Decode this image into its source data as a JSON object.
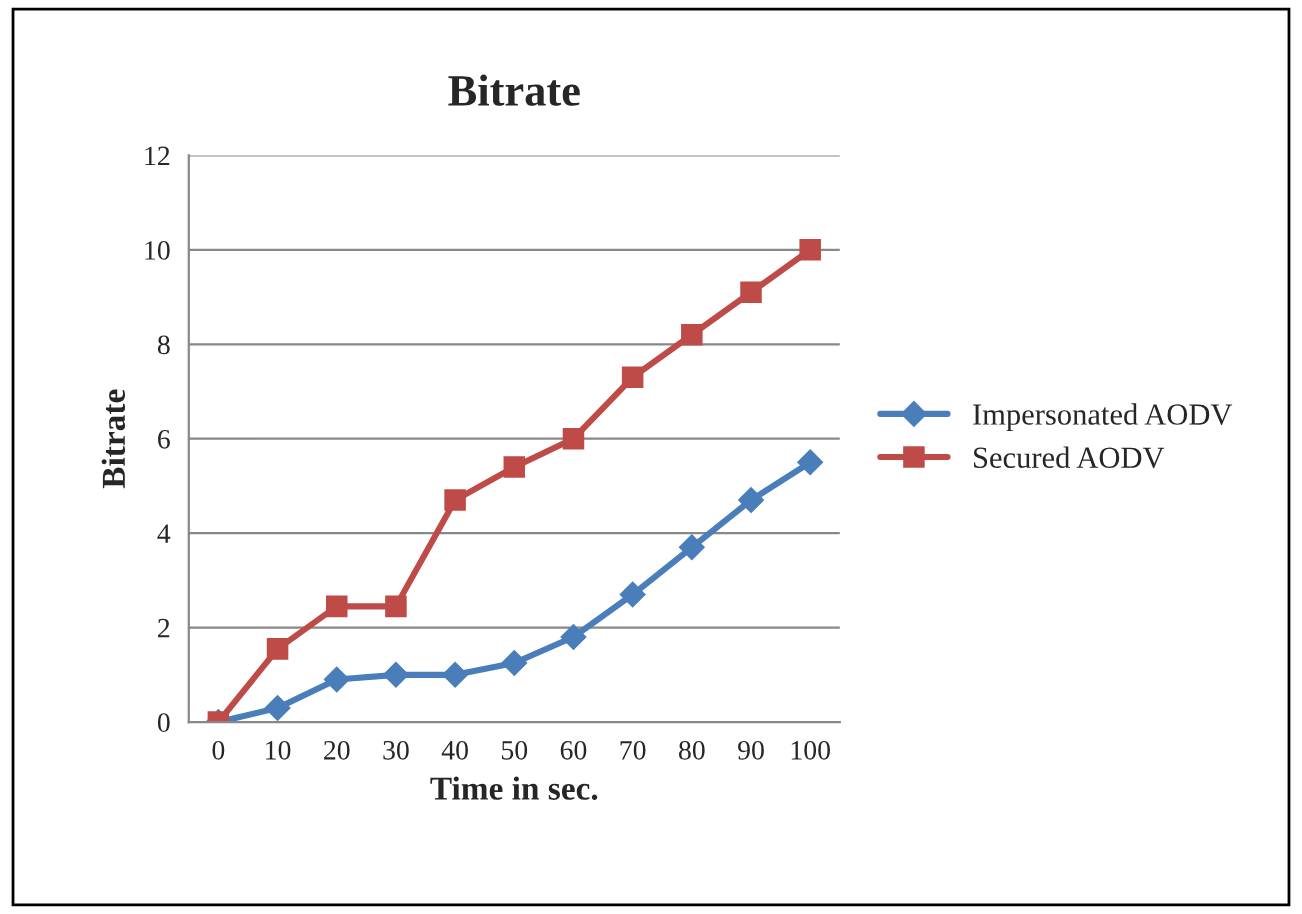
{
  "chart_data": {
    "type": "line",
    "title": "Bitrate",
    "xlabel": "Time in sec.",
    "ylabel": "Bitrate",
    "categories": [
      "0",
      "10",
      "20",
      "30",
      "40",
      "50",
      "60",
      "70",
      "80",
      "90",
      "100"
    ],
    "series": [
      {
        "name": "Impersonated AODV",
        "color": "#4a7ebb",
        "marker": "diamond",
        "values": [
          0,
          0.3,
          0.9,
          1.0,
          1.0,
          1.25,
          1.8,
          2.7,
          3.7,
          4.7,
          5.5
        ]
      },
      {
        "name": "Secured AODV",
        "color": "#be4b48",
        "marker": "square",
        "values": [
          0,
          1.55,
          2.45,
          2.45,
          4.7,
          5.4,
          6.0,
          7.3,
          8.2,
          9.1,
          10.0
        ]
      }
    ],
    "ylim": [
      0,
      12
    ],
    "yticks": [
      0,
      2,
      4,
      6,
      8,
      10,
      12
    ],
    "grid": "y",
    "legend": "right",
    "line_style": "solid"
  }
}
